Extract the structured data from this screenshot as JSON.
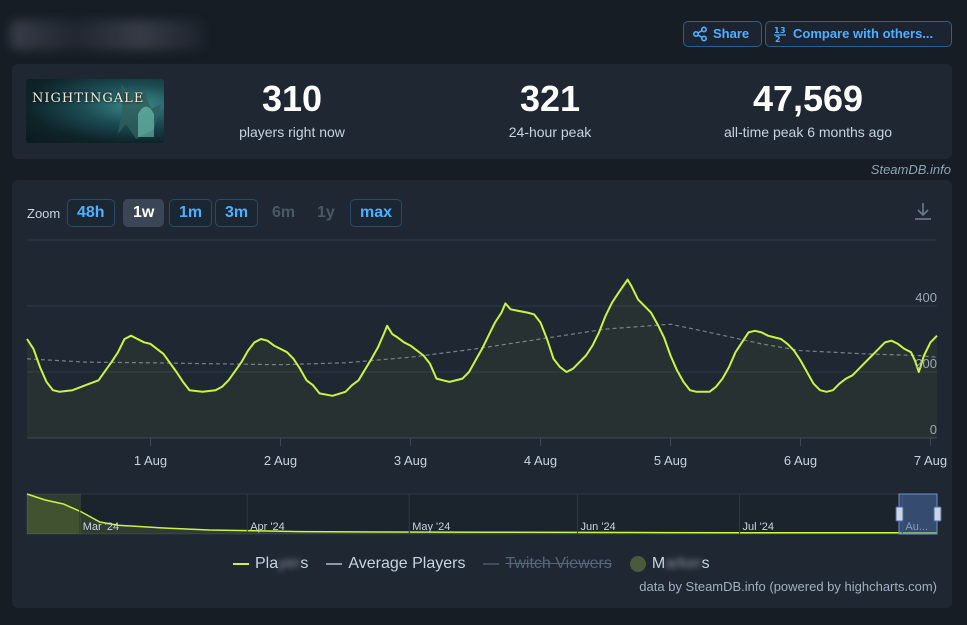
{
  "header": {
    "share_label": "Share",
    "compare_label": "Compare with others..."
  },
  "game": {
    "logo_text": "NIGHTINGALE"
  },
  "stats": [
    {
      "value": "310",
      "label": "players right now"
    },
    {
      "value": "321",
      "label": "24-hour peak"
    },
    {
      "value": "47,569",
      "label": "all-time peak 6 months ago"
    }
  ],
  "credit": "SteamDB.info",
  "zoom": {
    "label": "Zoom",
    "buttons": [
      {
        "label": "48h",
        "state": "normal"
      },
      {
        "label": "1w",
        "state": "active"
      },
      {
        "label": "1m",
        "state": "normal"
      },
      {
        "label": "3m",
        "state": "normal"
      },
      {
        "label": "6m",
        "state": "disabled"
      },
      {
        "label": "1y",
        "state": "disabled"
      },
      {
        "label": "max",
        "state": "normal"
      }
    ]
  },
  "chart_data": {
    "type": "line",
    "x_ticks": [
      "1 Aug",
      "2 Aug",
      "3 Aug",
      "4 Aug",
      "5 Aug",
      "6 Aug",
      "7 Aug"
    ],
    "y_ticks": [
      0,
      200,
      400
    ],
    "ylim": [
      0,
      600
    ],
    "x_range_days": [
      -0.95,
      6.05
    ],
    "series": [
      {
        "name": "Players",
        "color": "#c8f542",
        "points": [
          [
            -0.95,
            300
          ],
          [
            -0.9,
            270
          ],
          [
            -0.85,
            215
          ],
          [
            -0.8,
            170
          ],
          [
            -0.75,
            145
          ],
          [
            -0.7,
            140
          ],
          [
            -0.6,
            145
          ],
          [
            -0.5,
            160
          ],
          [
            -0.4,
            175
          ],
          [
            -0.3,
            230
          ],
          [
            -0.25,
            260
          ],
          [
            -0.2,
            300
          ],
          [
            -0.15,
            310
          ],
          [
            -0.1,
            300
          ],
          [
            -0.05,
            290
          ],
          [
            0.0,
            285
          ],
          [
            0.05,
            270
          ],
          [
            0.1,
            255
          ],
          [
            0.2,
            200
          ],
          [
            0.25,
            170
          ],
          [
            0.3,
            145
          ],
          [
            0.4,
            140
          ],
          [
            0.5,
            145
          ],
          [
            0.55,
            155
          ],
          [
            0.6,
            175
          ],
          [
            0.7,
            230
          ],
          [
            0.75,
            265
          ],
          [
            0.8,
            290
          ],
          [
            0.85,
            300
          ],
          [
            0.9,
            295
          ],
          [
            0.95,
            280
          ],
          [
            1.0,
            270
          ],
          [
            1.05,
            260
          ],
          [
            1.1,
            240
          ],
          [
            1.15,
            210
          ],
          [
            1.2,
            175
          ],
          [
            1.25,
            160
          ],
          [
            1.3,
            135
          ],
          [
            1.4,
            128
          ],
          [
            1.5,
            140
          ],
          [
            1.55,
            160
          ],
          [
            1.6,
            175
          ],
          [
            1.7,
            240
          ],
          [
            1.75,
            275
          ],
          [
            1.8,
            320
          ],
          [
            1.82,
            340
          ],
          [
            1.86,
            315
          ],
          [
            1.9,
            305
          ],
          [
            1.95,
            290
          ],
          [
            2.0,
            280
          ],
          [
            2.1,
            250
          ],
          [
            2.15,
            225
          ],
          [
            2.2,
            180
          ],
          [
            2.25,
            175
          ],
          [
            2.3,
            170
          ],
          [
            2.4,
            180
          ],
          [
            2.45,
            200
          ],
          [
            2.5,
            235
          ],
          [
            2.55,
            270
          ],
          [
            2.6,
            310
          ],
          [
            2.65,
            350
          ],
          [
            2.7,
            380
          ],
          [
            2.73,
            408
          ],
          [
            2.77,
            390
          ],
          [
            2.83,
            385
          ],
          [
            2.9,
            380
          ],
          [
            2.95,
            375
          ],
          [
            3.0,
            350
          ],
          [
            3.05,
            300
          ],
          [
            3.1,
            240
          ],
          [
            3.15,
            215
          ],
          [
            3.2,
            200
          ],
          [
            3.25,
            210
          ],
          [
            3.3,
            230
          ],
          [
            3.35,
            250
          ],
          [
            3.4,
            280
          ],
          [
            3.45,
            320
          ],
          [
            3.5,
            370
          ],
          [
            3.55,
            410
          ],
          [
            3.6,
            440
          ],
          [
            3.67,
            480
          ],
          [
            3.7,
            460
          ],
          [
            3.75,
            420
          ],
          [
            3.8,
            400
          ],
          [
            3.85,
            380
          ],
          [
            3.9,
            345
          ],
          [
            3.95,
            305
          ],
          [
            4.0,
            250
          ],
          [
            4.05,
            205
          ],
          [
            4.1,
            170
          ],
          [
            4.15,
            145
          ],
          [
            4.2,
            140
          ],
          [
            4.3,
            140
          ],
          [
            4.35,
            155
          ],
          [
            4.4,
            180
          ],
          [
            4.45,
            215
          ],
          [
            4.5,
            260
          ],
          [
            4.55,
            290
          ],
          [
            4.6,
            320
          ],
          [
            4.65,
            325
          ],
          [
            4.7,
            320
          ],
          [
            4.75,
            310
          ],
          [
            4.8,
            305
          ],
          [
            4.85,
            300
          ],
          [
            4.9,
            285
          ],
          [
            4.95,
            265
          ],
          [
            5.0,
            235
          ],
          [
            5.05,
            200
          ],
          [
            5.1,
            165
          ],
          [
            5.15,
            145
          ],
          [
            5.2,
            140
          ],
          [
            5.25,
            145
          ],
          [
            5.3,
            165
          ],
          [
            5.35,
            180
          ],
          [
            5.4,
            190
          ],
          [
            5.45,
            210
          ],
          [
            5.5,
            230
          ],
          [
            5.55,
            250
          ],
          [
            5.6,
            270
          ],
          [
            5.65,
            290
          ],
          [
            5.7,
            295
          ],
          [
            5.75,
            285
          ],
          [
            5.8,
            270
          ],
          [
            5.85,
            260
          ],
          [
            5.88,
            235
          ],
          [
            5.91,
            200
          ],
          [
            5.95,
            250
          ],
          [
            6.0,
            290
          ],
          [
            6.05,
            310
          ]
        ]
      },
      {
        "name": "Average Players",
        "color": "#8c98a4",
        "points": [
          [
            -0.95,
            240
          ],
          [
            -0.5,
            230
          ],
          [
            0.0,
            228
          ],
          [
            0.5,
            225
          ],
          [
            1.0,
            222
          ],
          [
            1.5,
            228
          ],
          [
            2.0,
            245
          ],
          [
            2.5,
            270
          ],
          [
            3.0,
            300
          ],
          [
            3.5,
            330
          ],
          [
            4.0,
            345
          ],
          [
            4.3,
            320
          ],
          [
            4.7,
            285
          ],
          [
            5.0,
            265
          ],
          [
            5.5,
            255
          ],
          [
            5.9,
            250
          ],
          [
            6.05,
            245
          ]
        ]
      }
    ],
    "navigator_x_ticks": [
      "Mar '24",
      "Apr '24",
      "May '24",
      "Jun '24",
      "Jul '24",
      "Au..."
    ],
    "navigator_series": [
      [
        0,
        1.0
      ],
      [
        0.02,
        0.85
      ],
      [
        0.04,
        0.75
      ],
      [
        0.06,
        0.55
      ],
      [
        0.08,
        0.3
      ],
      [
        0.1,
        0.22
      ],
      [
        0.15,
        0.15
      ],
      [
        0.2,
        0.1
      ],
      [
        0.25,
        0.08
      ],
      [
        0.3,
        0.06
      ],
      [
        0.4,
        0.05
      ],
      [
        0.5,
        0.045
      ],
      [
        0.6,
        0.04
      ],
      [
        0.7,
        0.035
      ],
      [
        0.8,
        0.03
      ],
      [
        0.9,
        0.03
      ],
      [
        1.0,
        0.03
      ]
    ],
    "legend": [
      {
        "label": "Players",
        "visible": true
      },
      {
        "label": "Average Players",
        "visible": true
      },
      {
        "label": "Twitch Viewers",
        "visible": false
      },
      {
        "label": "Markers",
        "visible": true
      }
    ]
  },
  "footnote": "data by SteamDB.info (powered by highcharts.com)"
}
